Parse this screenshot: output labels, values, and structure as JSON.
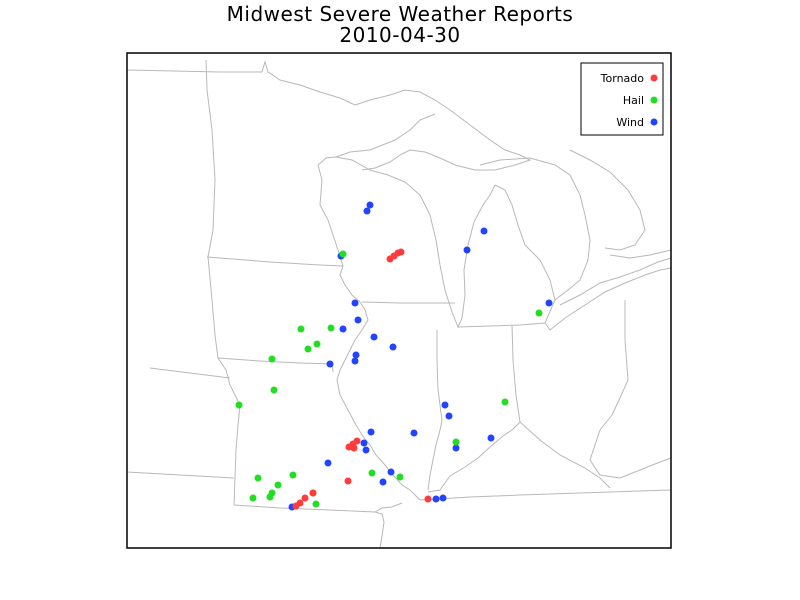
{
  "title": "Midwest Severe Weather Reports",
  "date": "2010-04-30",
  "colors": {
    "tornado": "#ff3b3b",
    "hail": "#22dd22",
    "wind": "#2244ff",
    "boundary": "#b8b8b8",
    "frame": "#000000"
  },
  "legend": [
    {
      "label": "Tornado",
      "type": "tornado"
    },
    {
      "label": "Hail",
      "type": "hail"
    },
    {
      "label": "Wind",
      "type": "wind"
    }
  ],
  "reports": {
    "tornado": [
      [
        349,
        447
      ],
      [
        353,
        444
      ],
      [
        357,
        441
      ],
      [
        354,
        448
      ],
      [
        390,
        259
      ],
      [
        394,
        256
      ],
      [
        398,
        253
      ],
      [
        401,
        252
      ],
      [
        348,
        481
      ],
      [
        313,
        493
      ],
      [
        305,
        498
      ],
      [
        300,
        503
      ],
      [
        296,
        506
      ],
      [
        428,
        499
      ]
    ],
    "hail": [
      [
        343,
        254
      ],
      [
        301,
        329
      ],
      [
        331,
        328
      ],
      [
        317,
        344
      ],
      [
        308,
        349
      ],
      [
        272,
        359
      ],
      [
        274,
        390
      ],
      [
        239,
        405
      ],
      [
        258,
        478
      ],
      [
        278,
        485
      ],
      [
        272,
        493
      ],
      [
        270,
        497
      ],
      [
        253,
        498
      ],
      [
        293,
        475
      ],
      [
        313,
        493
      ],
      [
        316,
        504
      ],
      [
        372,
        473
      ],
      [
        400,
        477
      ],
      [
        456,
        442
      ],
      [
        505,
        402
      ],
      [
        539,
        313
      ]
    ],
    "wind": [
      [
        370,
        205
      ],
      [
        367,
        211
      ],
      [
        484,
        231
      ],
      [
        467,
        250
      ],
      [
        341,
        256
      ],
      [
        355,
        303
      ],
      [
        358,
        320
      ],
      [
        343,
        329
      ],
      [
        374,
        337
      ],
      [
        393,
        347
      ],
      [
        356,
        355
      ],
      [
        355,
        361
      ],
      [
        330,
        364
      ],
      [
        549,
        303
      ],
      [
        445,
        405
      ],
      [
        449,
        416
      ],
      [
        371,
        432
      ],
      [
        414,
        433
      ],
      [
        364,
        443
      ],
      [
        366,
        450
      ],
      [
        456,
        448
      ],
      [
        491,
        438
      ],
      [
        328,
        463
      ],
      [
        383,
        482
      ],
      [
        391,
        472
      ],
      [
        436,
        499
      ],
      [
        443,
        498
      ],
      [
        292,
        507
      ]
    ]
  }
}
